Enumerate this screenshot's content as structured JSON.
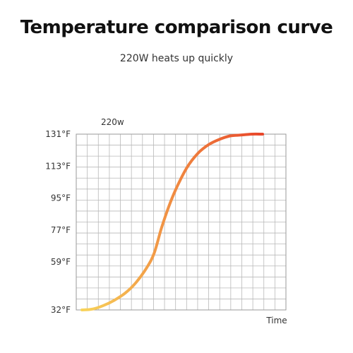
{
  "header": {
    "title": "Temperature comparison curve",
    "subtitle": "220W heats up quickly"
  },
  "colors": {
    "curve_start": "#f8d45a",
    "curve_end": "#e8452a",
    "grid": "#b9b9b9",
    "frame": "#9a9a9a"
  },
  "chart_data": {
    "type": "line",
    "title": "Temperature comparison curve",
    "subtitle": "220W heats up quickly",
    "xlabel": "Time",
    "ylabel": "",
    "ylim": [
      32,
      131
    ],
    "y_ticks": [
      {
        "value": 32,
        "label": "32°F"
      },
      {
        "value": 59,
        "label": "59°F"
      },
      {
        "value": 77,
        "label": "77°F"
      },
      {
        "value": 95,
        "label": "95°F"
      },
      {
        "value": 113,
        "label": "113°F"
      },
      {
        "value": 131,
        "label": "131°F"
      }
    ],
    "grid": true,
    "legend_position": "top-left",
    "series": [
      {
        "name": "220w",
        "x": [
          0,
          0.06,
          0.12,
          0.18,
          0.24,
          0.3,
          0.36,
          0.4,
          0.44,
          0.48,
          0.52,
          0.58,
          0.64,
          0.7,
          0.76,
          0.82,
          0.88,
          0.94,
          1.0
        ],
        "values": [
          32,
          32.5,
          34.5,
          37.5,
          41.5,
          47.5,
          56,
          64,
          78,
          90,
          100,
          112,
          120,
          125,
          128,
          130,
          130.5,
          131,
          131
        ]
      }
    ]
  }
}
